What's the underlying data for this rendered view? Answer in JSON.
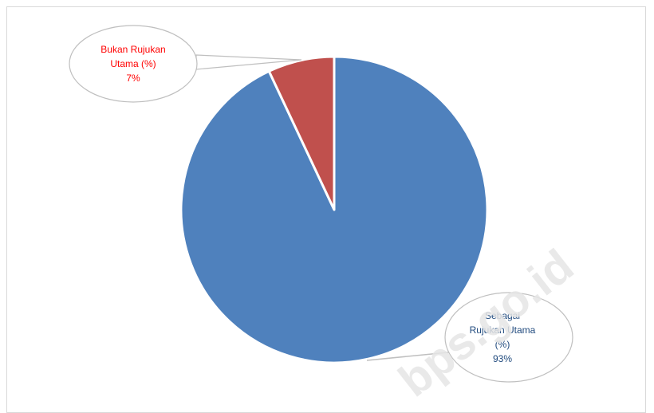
{
  "watermark": "bps.go.id",
  "chart_data": {
    "type": "pie",
    "title": "",
    "slices": [
      {
        "label_lines": [
          "Sebagai",
          "Rujukan Utama",
          "(%)"
        ],
        "value": 93,
        "value_label": "93%",
        "color": "#4f81bd",
        "label_color": "#1f497d"
      },
      {
        "label_lines": [
          "Bukan Rujukan",
          "Utama (%)"
        ],
        "value": 7,
        "value_label": "7%",
        "color": "#c0504d",
        "label_color": "#ff0000"
      }
    ],
    "start_angle": "12 o'clock, clockwise",
    "legend": "none",
    "data_labels": "callouts"
  }
}
